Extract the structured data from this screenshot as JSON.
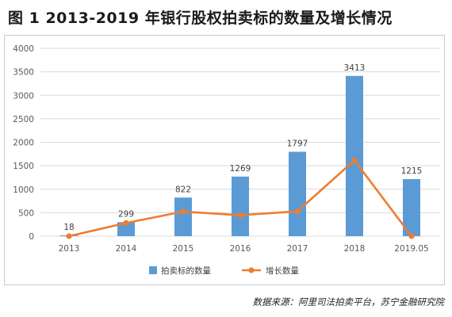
{
  "title": "图 1  2013-2019 年银行股权拍卖标的数量及增长情况",
  "source": "数据来源：阿里司法拍卖平台，苏宁金融研究院",
  "chart_data": {
    "type": "bar",
    "categories": [
      "2013",
      "2014",
      "2015",
      "2016",
      "2017",
      "2018",
      "2019.05"
    ],
    "ylim": [
      0,
      4000
    ],
    "yticks": [
      0,
      500,
      1000,
      1500,
      2000,
      2500,
      3000,
      3500,
      4000
    ],
    "grid": true,
    "legend_position": "bottom",
    "series": [
      {
        "name": "拍卖标的数量",
        "type": "bar",
        "color": "#5b9bd5",
        "values": [
          18,
          299,
          822,
          1269,
          1797,
          3413,
          1215
        ],
        "labels": [
          "18",
          "299",
          "822",
          "1269",
          "1797",
          "3413",
          "1215"
        ]
      },
      {
        "name": "增长数量",
        "type": "line",
        "color": "#ed7d31",
        "values": [
          0,
          281,
          523,
          447,
          528,
          1616,
          0
        ]
      }
    ]
  }
}
